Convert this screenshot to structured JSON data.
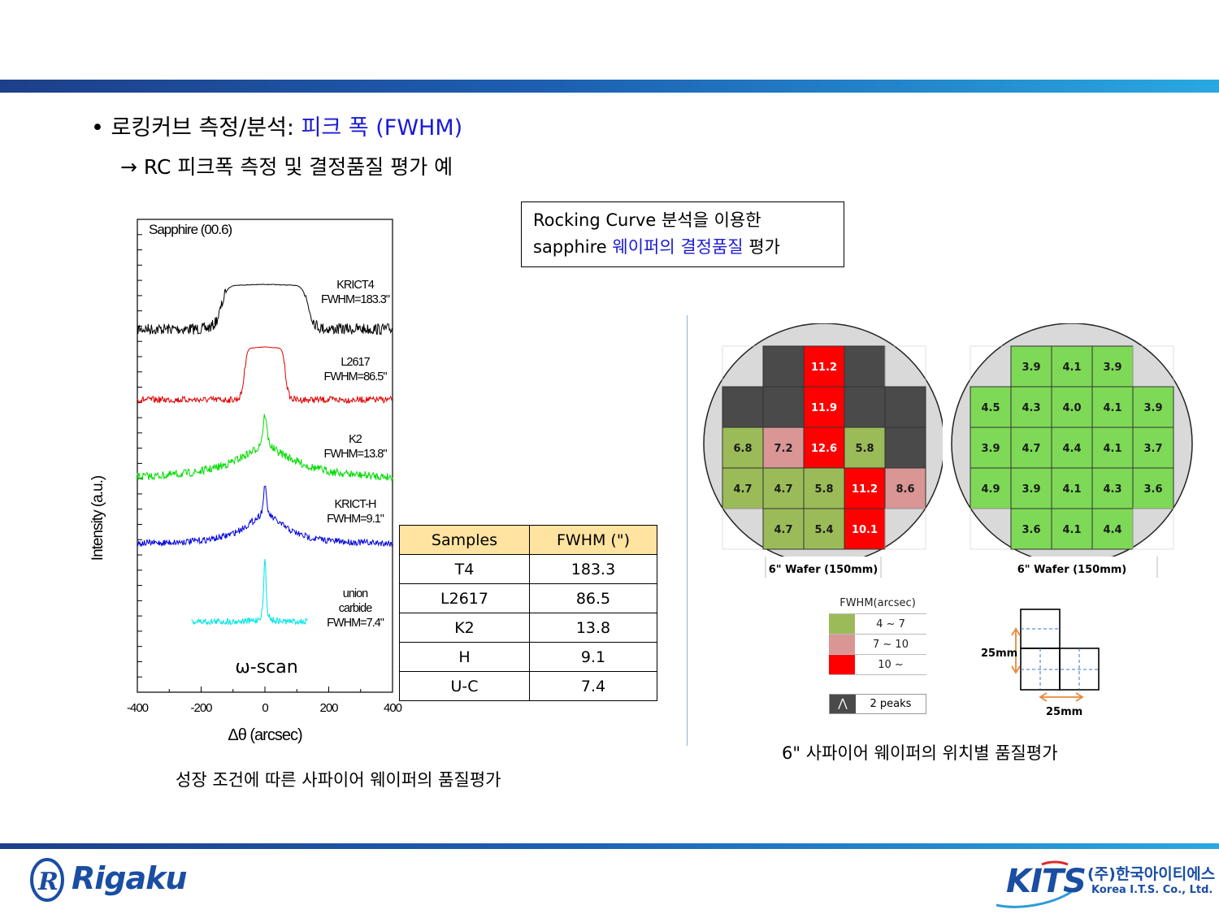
{
  "heading": {
    "bullet_prefix": "• 로킹커브 측정/분석: ",
    "bullet_highlight": "피크 폭 (FWHM)",
    "sub_line": "→ RC 피크폭 측정 및 결정품질 평가 예"
  },
  "callout": {
    "line1": "Rocking Curve 분석을 이용한",
    "line2_start": "sapphire ",
    "line2_highlight": "웨이퍼의 결정품질",
    "line2_end": " 평가"
  },
  "chart_data": {
    "type": "line",
    "title": "Sapphire (00.6)",
    "xlabel": "Δθ (arcsec)",
    "ylabel": "Intensity (a.u.)",
    "xlim": [
      -400,
      400
    ],
    "x_ticks": [
      "-400",
      "-200",
      "0",
      "200",
      "400"
    ],
    "annotation": "ω-scan",
    "series": [
      {
        "name": "KRICT4",
        "label_lines": [
          "KRICT4",
          "FWHM=183.3\""
        ],
        "fwhm": 183.3,
        "color": "#000000",
        "shape": "flat-top",
        "x_range": [
          -400,
          400
        ]
      },
      {
        "name": "L2617",
        "label_lines": [
          "L2617",
          "FWHM=86.5\""
        ],
        "fwhm": 86.5,
        "color": "#e00000",
        "shape": "flat-top",
        "x_range": [
          -400,
          400
        ]
      },
      {
        "name": "K2",
        "label_lines": [
          "K2",
          "FWHM=13.8\""
        ],
        "fwhm": 13.8,
        "color": "#00dd00",
        "shape": "lorentzian",
        "x_range": [
          -400,
          400
        ]
      },
      {
        "name": "KRICT-H",
        "label_lines": [
          "KRICT-H",
          "FWHM=9.1\""
        ],
        "fwhm": 9.1,
        "color": "#0000dd",
        "shape": "lorentzian",
        "x_range": [
          -400,
          400
        ]
      },
      {
        "name": "union carbide",
        "label_lines": [
          "union",
          "carbide",
          "FWHM=7.4\""
        ],
        "fwhm": 7.4,
        "color": "#00e5e5",
        "shape": "sharp",
        "x_range": [
          -230,
          135
        ]
      }
    ]
  },
  "fwhm_table": {
    "headers": [
      "Samples",
      "FWHM (\")"
    ],
    "rows": [
      [
        "T4",
        "183.3"
      ],
      [
        "L2617",
        "86.5"
      ],
      [
        "K2",
        "13.8"
      ],
      [
        "H",
        "9.1"
      ],
      [
        "U-C",
        "7.4"
      ]
    ]
  },
  "wafer_maps": [
    {
      "label": "6\" Wafer (150mm)",
      "grid": [
        [
          null,
          "D",
          "11.2",
          "D",
          null
        ],
        [
          "D",
          "D",
          "11.9",
          "D",
          "D"
        ],
        [
          "6.8",
          "7.2",
          "12.6",
          "5.8",
          "D"
        ],
        [
          "4.7",
          "4.7",
          "5.8",
          "11.2",
          "8.6"
        ],
        [
          null,
          "4.7",
          "5.4",
          "10.1",
          null
        ]
      ]
    },
    {
      "label": "6\" Wafer (150mm)",
      "grid": [
        [
          null,
          "3.9",
          "4.1",
          "3.9",
          null
        ],
        [
          "4.5",
          "4.3",
          "4.0",
          "4.1",
          "3.9"
        ],
        [
          "3.9",
          "4.7",
          "4.4",
          "4.1",
          "3.7"
        ],
        [
          "4.9",
          "3.9",
          "4.1",
          "4.3",
          "3.6"
        ],
        [
          null,
          "3.6",
          "4.1",
          "4.4",
          null
        ]
      ]
    }
  ],
  "legend": {
    "title": "FWHM(arcsec)",
    "items": [
      {
        "label": "4 ~ 7",
        "color": "#9bbb59"
      },
      {
        "label": "7 ~ 10",
        "color": "#d99694"
      },
      {
        "label": "10 ~",
        "color": "#ff0000"
      }
    ],
    "peaks_label": "2 peaks",
    "peaks_color": "#4a4a4a"
  },
  "size_diagram": {
    "vertical": "25mm",
    "horizontal": "25mm"
  },
  "captions": {
    "left": "성장 조건에 따른 사파이어 웨이퍼의 품질평가",
    "right": "6\" 사파이어 웨이퍼의 위치별 품질평가"
  },
  "logos": {
    "rigaku": "Rigaku",
    "kits": "KITS",
    "kits_korean": "(주)한국아이티에스",
    "kits_english": "Korea I.T.S. Co., Ltd."
  },
  "colors": {
    "good": "#7ed957",
    "low": "#9bbb59",
    "mid": "#d99694",
    "high": "#ff0000",
    "double_peak": "#4a4a4a",
    "accent_blue": "#1a1ad6"
  }
}
